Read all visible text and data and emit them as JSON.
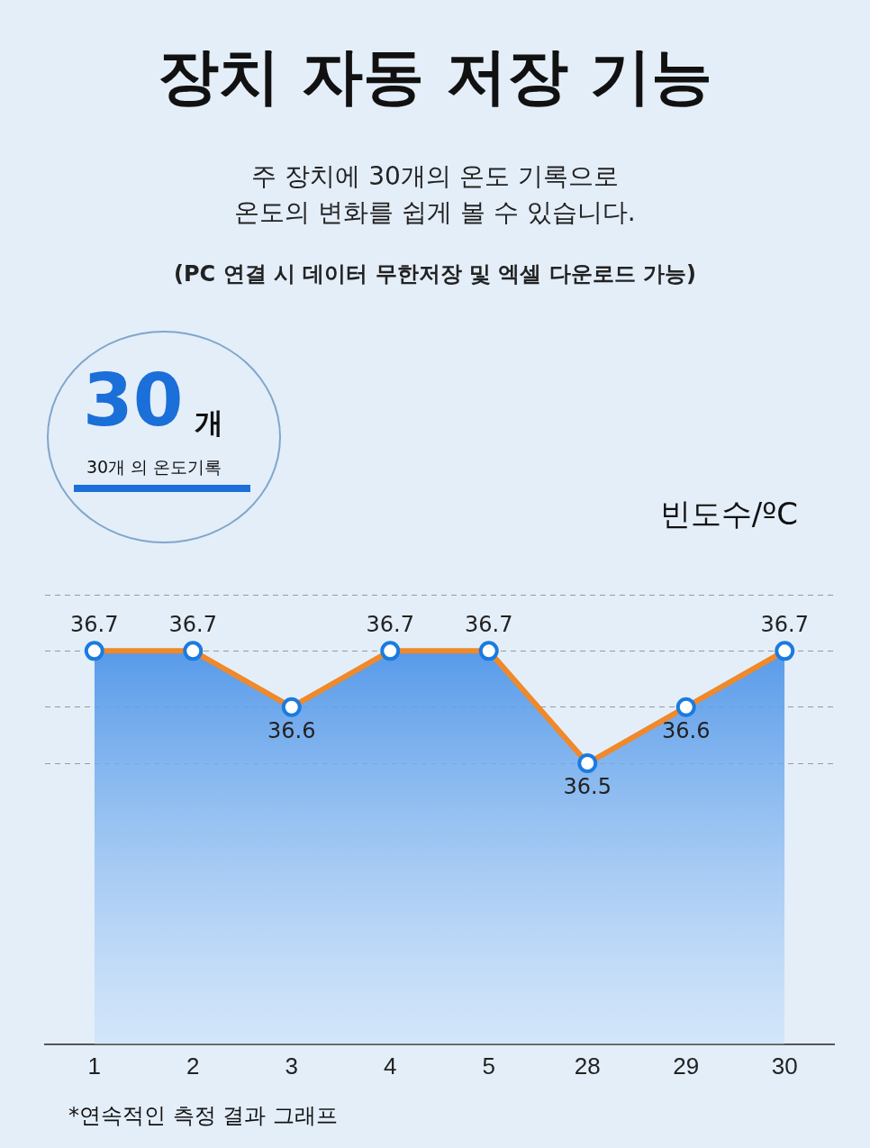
{
  "chart_data": {
    "type": "area",
    "title": "장치 자동 저장 기능",
    "subtitle": "주 장치에 30개의 온도 기록으로\n온도의 변화를 쉽게 볼 수 있습니다.",
    "ylabel": "빈도수/ºC",
    "annotations": [
      "(PC 연결 시 데이터 무한저장 및 엑셀 다운로드 가능)",
      "30",
      "개",
      "30개 의 온도기록",
      "*연속적인 측정 결과 그래프"
    ],
    "categories": [
      "1",
      "2",
      "3",
      "4",
      "5",
      "28",
      "29",
      "30"
    ],
    "series": [
      {
        "color": "#f0892a",
        "values": [
          36.7,
          36.7,
          36.6,
          36.7,
          36.7,
          36.5,
          36.6,
          36.7
        ]
      }
    ],
    "ylim": [
      36.0,
      36.8
    ],
    "yticks": [
      {
        "value": 36.5,
        "label": null
      },
      {
        "value": 36.6,
        "label": null
      },
      {
        "value": 36.7,
        "label": null
      },
      {
        "value": 36.8,
        "label": null
      }
    ],
    "tick_labels": "x",
    "grid": "y",
    "data_labels": true,
    "marker": "circle",
    "line_style": "solid"
  }
}
